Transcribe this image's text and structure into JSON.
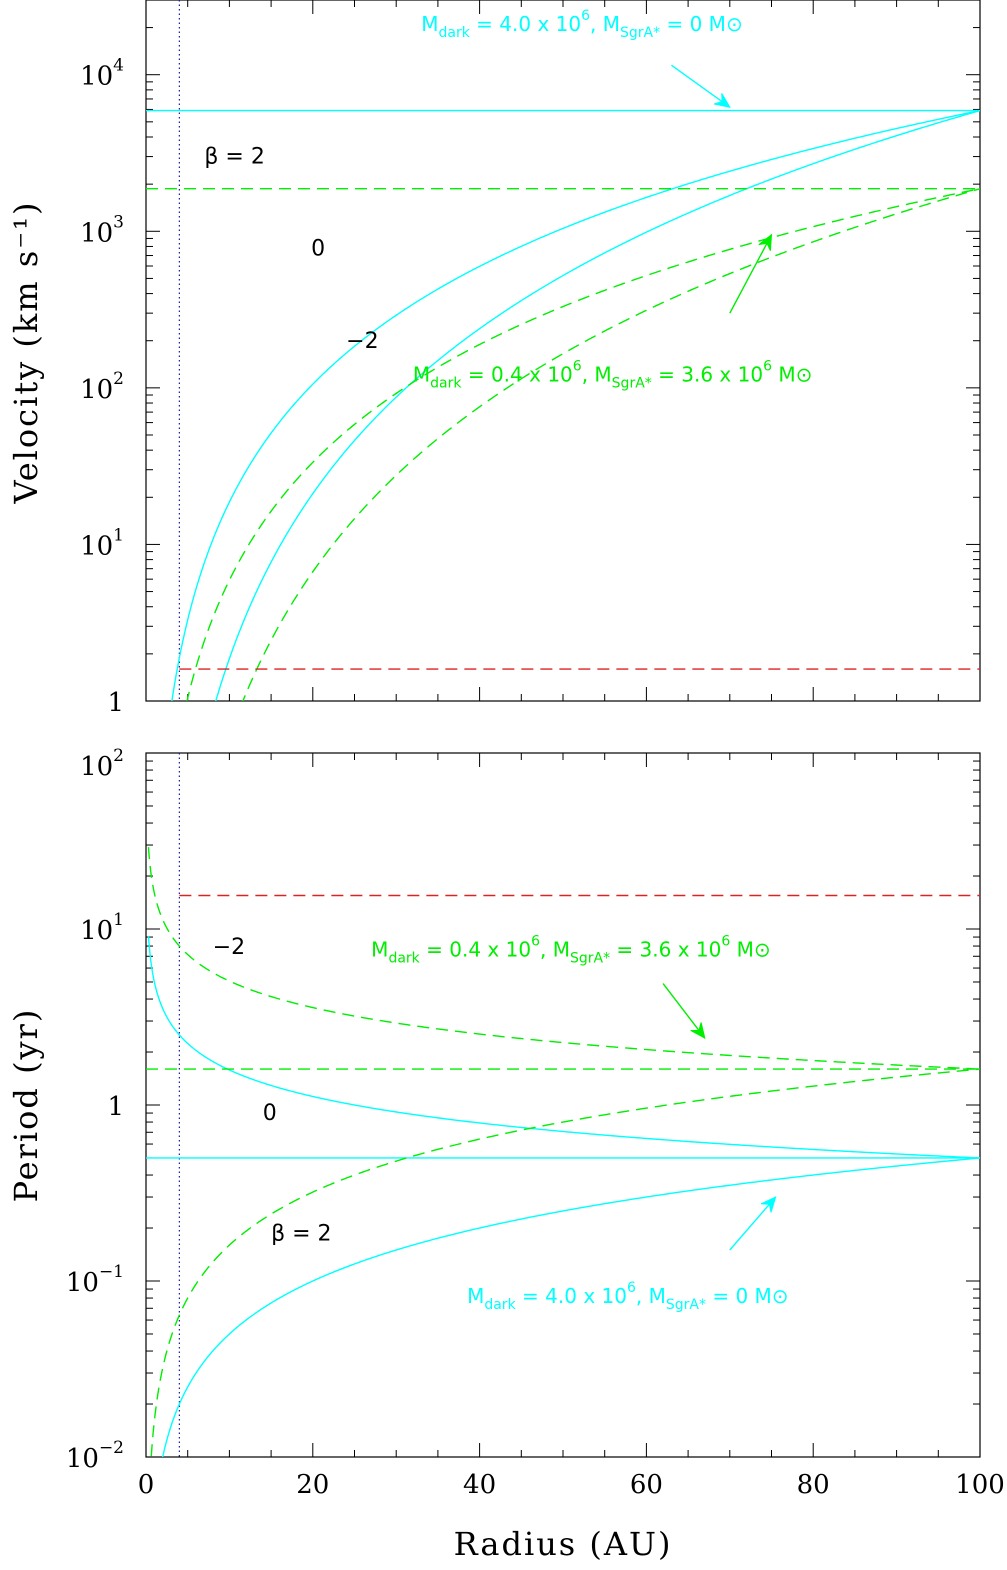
{
  "colors": {
    "cyan": "#00ffff",
    "green": "#00ee00",
    "red": "#dd2222",
    "dotted": "#1a1a9a",
    "axis": "#000000"
  },
  "chart_data": [
    {
      "type": "line",
      "name": "velocity",
      "xlabel": "Radius (AU)",
      "ylabel": "Velocity (km s⁻¹)",
      "xlim": [
        0,
        100
      ],
      "ylim": [
        1,
        30000
      ],
      "yscale": "log",
      "x_ticks": [
        "0",
        "20",
        "40",
        "60",
        "80",
        "100"
      ],
      "y_ticks": [
        {
          "value": 1,
          "base": "1",
          "exp": ""
        },
        {
          "value": 10,
          "base": "10",
          "exp": "1"
        },
        {
          "value": 100,
          "base": "10",
          "exp": "2"
        },
        {
          "value": 1000,
          "base": "10",
          "exp": "3"
        },
        {
          "value": 10000,
          "base": "10",
          "exp": "4"
        }
      ],
      "vline_x": 4,
      "series": [
        {
          "style": "cyan-solid",
          "kind": "const",
          "value": 5900
        },
        {
          "style": "cyan-solid",
          "kind": "power",
          "k": 2.5,
          "end": 5900
        },
        {
          "style": "cyan-solid",
          "kind": "power",
          "k": 3.5,
          "end": 5900
        },
        {
          "style": "green-dashed",
          "kind": "const",
          "value": 1870
        },
        {
          "style": "green-dashed",
          "kind": "power",
          "k": 2.5,
          "end": 1870
        },
        {
          "style": "green-dashed",
          "kind": "power",
          "k": 3.5,
          "end": 1870
        },
        {
          "style": "red-dashed",
          "kind": "const",
          "value": 1.6,
          "x0": 4
        }
      ],
      "beta_labels": [
        {
          "text": "β = 2",
          "x": 7,
          "y": 2700
        },
        {
          "text": "0",
          "x": 19.8,
          "y": 700
        },
        {
          "text": "−2",
          "x": 24,
          "y": 180
        }
      ],
      "annotations": [
        {
          "color": "cyan",
          "x": 33,
          "y": 19000,
          "parts": [
            "M",
            "dark",
            " = 4.0 x 10",
            "6",
            ",  M",
            "SgrA*",
            " = 0 M",
            "⊙"
          ],
          "arrow": {
            "from": [
              63,
              11500
            ],
            "to": [
              70,
              6200
            ]
          }
        },
        {
          "color": "green",
          "x": 32,
          "y": 110,
          "parts": [
            "M",
            "dark",
            " = 0.4 x 10",
            "6",
            ",  M",
            "SgrA*",
            " = 3.6 x 10",
            "6",
            " M",
            "⊙"
          ],
          "arrow": {
            "from": [
              70,
              300
            ],
            "to": [
              75,
              950
            ]
          }
        }
      ]
    },
    {
      "type": "line",
      "name": "period",
      "xlabel": "Radius (AU)",
      "ylabel": "Period (yr)",
      "xlim": [
        0,
        100
      ],
      "ylim": [
        0.01,
        100
      ],
      "yscale": "log",
      "x_ticks": [
        "0",
        "20",
        "40",
        "60",
        "80",
        "100"
      ],
      "y_ticks": [
        {
          "value": 0.01,
          "base": "10",
          "exp": "−2"
        },
        {
          "value": 0.1,
          "base": "10",
          "exp": "−1"
        },
        {
          "value": 1,
          "base": "1",
          "exp": ""
        },
        {
          "value": 10,
          "base": "10",
          "exp": "1"
        },
        {
          "value": 100,
          "base": "10",
          "exp": "2"
        }
      ],
      "vline_x": 4,
      "series": [
        {
          "style": "cyan-solid",
          "kind": "const",
          "value": 0.5
        },
        {
          "style": "cyan-solid",
          "kind": "power",
          "k": 1.0,
          "end": 0.5
        },
        {
          "style": "cyan-solid",
          "kind": "power",
          "k": -0.5,
          "end": 0.5
        },
        {
          "style": "green-dashed",
          "kind": "const",
          "value": 1.6
        },
        {
          "style": "green-dashed",
          "kind": "power",
          "k": 1.0,
          "end": 1.6
        },
        {
          "style": "green-dashed",
          "kind": "power",
          "k": -0.5,
          "end": 1.6
        },
        {
          "style": "red-dashed",
          "kind": "const",
          "value": 15.5,
          "x0": 4
        }
      ],
      "beta_labels": [
        {
          "text": "−2",
          "x": 8,
          "y": 7.2
        },
        {
          "text": "0",
          "x": 14,
          "y": 0.82
        },
        {
          "text": "β = 2",
          "x": 15,
          "y": 0.17
        }
      ],
      "annotations": [
        {
          "color": "green",
          "x": 27,
          "y": 7.0,
          "parts": [
            "M",
            "dark",
            " = 0.4 x 10",
            "6",
            ",  M",
            "SgrA*",
            " = 3.6 x 10",
            "6",
            " M",
            "⊙"
          ],
          "arrow": {
            "from": [
              62,
              4.9
            ],
            "to": [
              67,
              2.4
            ]
          }
        },
        {
          "color": "cyan",
          "x": 38.5,
          "y": 0.075,
          "parts": [
            "M",
            "dark",
            " = 4.0 x 10",
            "6",
            ",  M",
            "SgrA*",
            " = 0 M",
            "⊙"
          ],
          "arrow": {
            "from": [
              70,
              0.15
            ],
            "to": [
              75.5,
              0.3
            ]
          }
        }
      ]
    }
  ]
}
